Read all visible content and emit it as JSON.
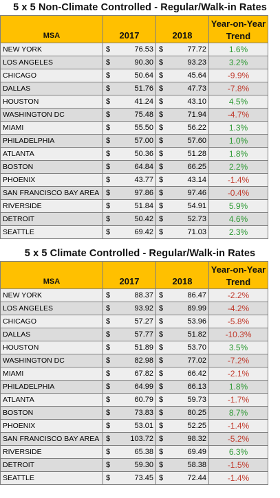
{
  "sections": [
    {
      "title": "5 x 5 Non-Climate Controlled - Regular/Walk-in Rates",
      "headers": {
        "msa": "MSA",
        "y1": "2017",
        "y2": "2018",
        "trend_line1": "Year-on-Year",
        "trend_line2": "Trend"
      },
      "rows": [
        {
          "msa": "NEW YORK",
          "cur1": "$",
          "v2017": "76.53",
          "cur2": "$",
          "v2018": "77.72",
          "trend": "1.6%"
        },
        {
          "msa": "LOS ANGELES",
          "cur1": "$",
          "v2017": "90.30",
          "cur2": "$",
          "v2018": "93.23",
          "trend": "3.2%"
        },
        {
          "msa": "CHICAGO",
          "cur1": "$",
          "v2017": "50.64",
          "cur2": "$",
          "v2018": "45.64",
          "trend": "-9.9%"
        },
        {
          "msa": "DALLAS",
          "cur1": "$",
          "v2017": "51.76",
          "cur2": "$",
          "v2018": "47.73",
          "trend": "-7.8%"
        },
        {
          "msa": "HOUSTON",
          "cur1": "$",
          "v2017": "41.24",
          "cur2": "$",
          "v2018": "43.10",
          "trend": "4.5%"
        },
        {
          "msa": "WASHINGTON DC",
          "cur1": "$",
          "v2017": "75.48",
          "cur2": "$",
          "v2018": "71.94",
          "trend": "-4.7%"
        },
        {
          "msa": "MIAMI",
          "cur1": "$",
          "v2017": "55.50",
          "cur2": "$",
          "v2018": "56.22",
          "trend": "1.3%"
        },
        {
          "msa": "PHILADELPHIA",
          "cur1": "$",
          "v2017": "57.00",
          "cur2": "$",
          "v2018": "57.60",
          "trend": "1.0%"
        },
        {
          "msa": "ATLANTA",
          "cur1": "$",
          "v2017": "50.36",
          "cur2": "$",
          "v2018": "51.28",
          "trend": "1.8%"
        },
        {
          "msa": "BOSTON",
          "cur1": "$",
          "v2017": "64.84",
          "cur2": "$",
          "v2018": "66.25",
          "trend": "2.2%"
        },
        {
          "msa": "PHOENIX",
          "cur1": "$",
          "v2017": "43.77",
          "cur2": "$",
          "v2018": "43.14",
          "trend": "-1.4%"
        },
        {
          "msa": "SAN FRANCISCO BAY AREA",
          "cur1": "$",
          "v2017": "97.86",
          "cur2": "$",
          "v2018": "97.46",
          "trend": "-0.4%"
        },
        {
          "msa": "RIVERSIDE",
          "cur1": "$",
          "v2017": "51.84",
          "cur2": "$",
          "v2018": "54.91",
          "trend": "5.9%"
        },
        {
          "msa": "DETROIT",
          "cur1": "$",
          "v2017": "50.42",
          "cur2": "$",
          "v2018": "52.73",
          "trend": "4.6%"
        },
        {
          "msa": "SEATTLE",
          "cur1": "$",
          "v2017": "69.42",
          "cur2": "$",
          "v2018": "71.03",
          "trend": "2.3%"
        }
      ]
    },
    {
      "title": "5 x 5 Climate Controlled - Regular/Walk-in Rates",
      "headers": {
        "msa": "MSA",
        "y1": "2017",
        "y2": "2018",
        "trend_line1": "Year-on-Year",
        "trend_line2": "Trend"
      },
      "rows": [
        {
          "msa": "NEW YORK",
          "cur1": "$",
          "v2017": "88.37",
          "cur2": "$",
          "v2018": "86.47",
          "trend": "-2.2%"
        },
        {
          "msa": "LOS ANGELES",
          "cur1": "$",
          "v2017": "93.92",
          "cur2": "$",
          "v2018": "89.99",
          "trend": "-4.2%"
        },
        {
          "msa": "CHICAGO",
          "cur1": "$",
          "v2017": "57.27",
          "cur2": "$",
          "v2018": "53.96",
          "trend": "-5.8%"
        },
        {
          "msa": "DALLAS",
          "cur1": "$",
          "v2017": "57.77",
          "cur2": "$",
          "v2018": "51.82",
          "trend": "-10.3%"
        },
        {
          "msa": "HOUSTON",
          "cur1": "$",
          "v2017": "51.89",
          "cur2": "$",
          "v2018": "53.70",
          "trend": "3.5%"
        },
        {
          "msa": "WASHINGTON DC",
          "cur1": "$",
          "v2017": "82.98",
          "cur2": "$",
          "v2018": "77.02",
          "trend": "-7.2%"
        },
        {
          "msa": "MIAMI",
          "cur1": "$",
          "v2017": "67.82",
          "cur2": "$",
          "v2018": "66.42",
          "trend": "-2.1%"
        },
        {
          "msa": "PHILADELPHIA",
          "cur1": "$",
          "v2017": "64.99",
          "cur2": "$",
          "v2018": "66.13",
          "trend": "1.8%"
        },
        {
          "msa": "ATLANTA",
          "cur1": "$",
          "v2017": "60.79",
          "cur2": "$",
          "v2018": "59.73",
          "trend": "-1.7%"
        },
        {
          "msa": "BOSTON",
          "cur1": "$",
          "v2017": "73.83",
          "cur2": "$",
          "v2018": "80.25",
          "trend": "8.7%"
        },
        {
          "msa": "PHOENIX",
          "cur1": "$",
          "v2017": "53.01",
          "cur2": "$",
          "v2018": "52.25",
          "trend": "-1.4%"
        },
        {
          "msa": "SAN FRANCISCO BAY AREA",
          "cur1": "$",
          "v2017": "103.72",
          "cur2": "$",
          "v2018": "98.32",
          "trend": "-5.2%"
        },
        {
          "msa": "RIVERSIDE",
          "cur1": "$",
          "v2017": "65.38",
          "cur2": "$",
          "v2018": "69.49",
          "trend": "6.3%"
        },
        {
          "msa": "DETROIT",
          "cur1": "$",
          "v2017": "59.30",
          "cur2": "$",
          "v2018": "58.38",
          "trend": "-1.5%"
        },
        {
          "msa": "SEATTLE",
          "cur1": "$",
          "v2017": "73.45",
          "cur2": "$",
          "v2018": "72.44",
          "trend": "-1.4%"
        }
      ]
    }
  ],
  "colors": {
    "header_bg": "#ffc000",
    "positive": "#2e9a34",
    "negative": "#c0392b",
    "row_light": "#eeeeee",
    "row_dark": "#dcdcdc"
  }
}
